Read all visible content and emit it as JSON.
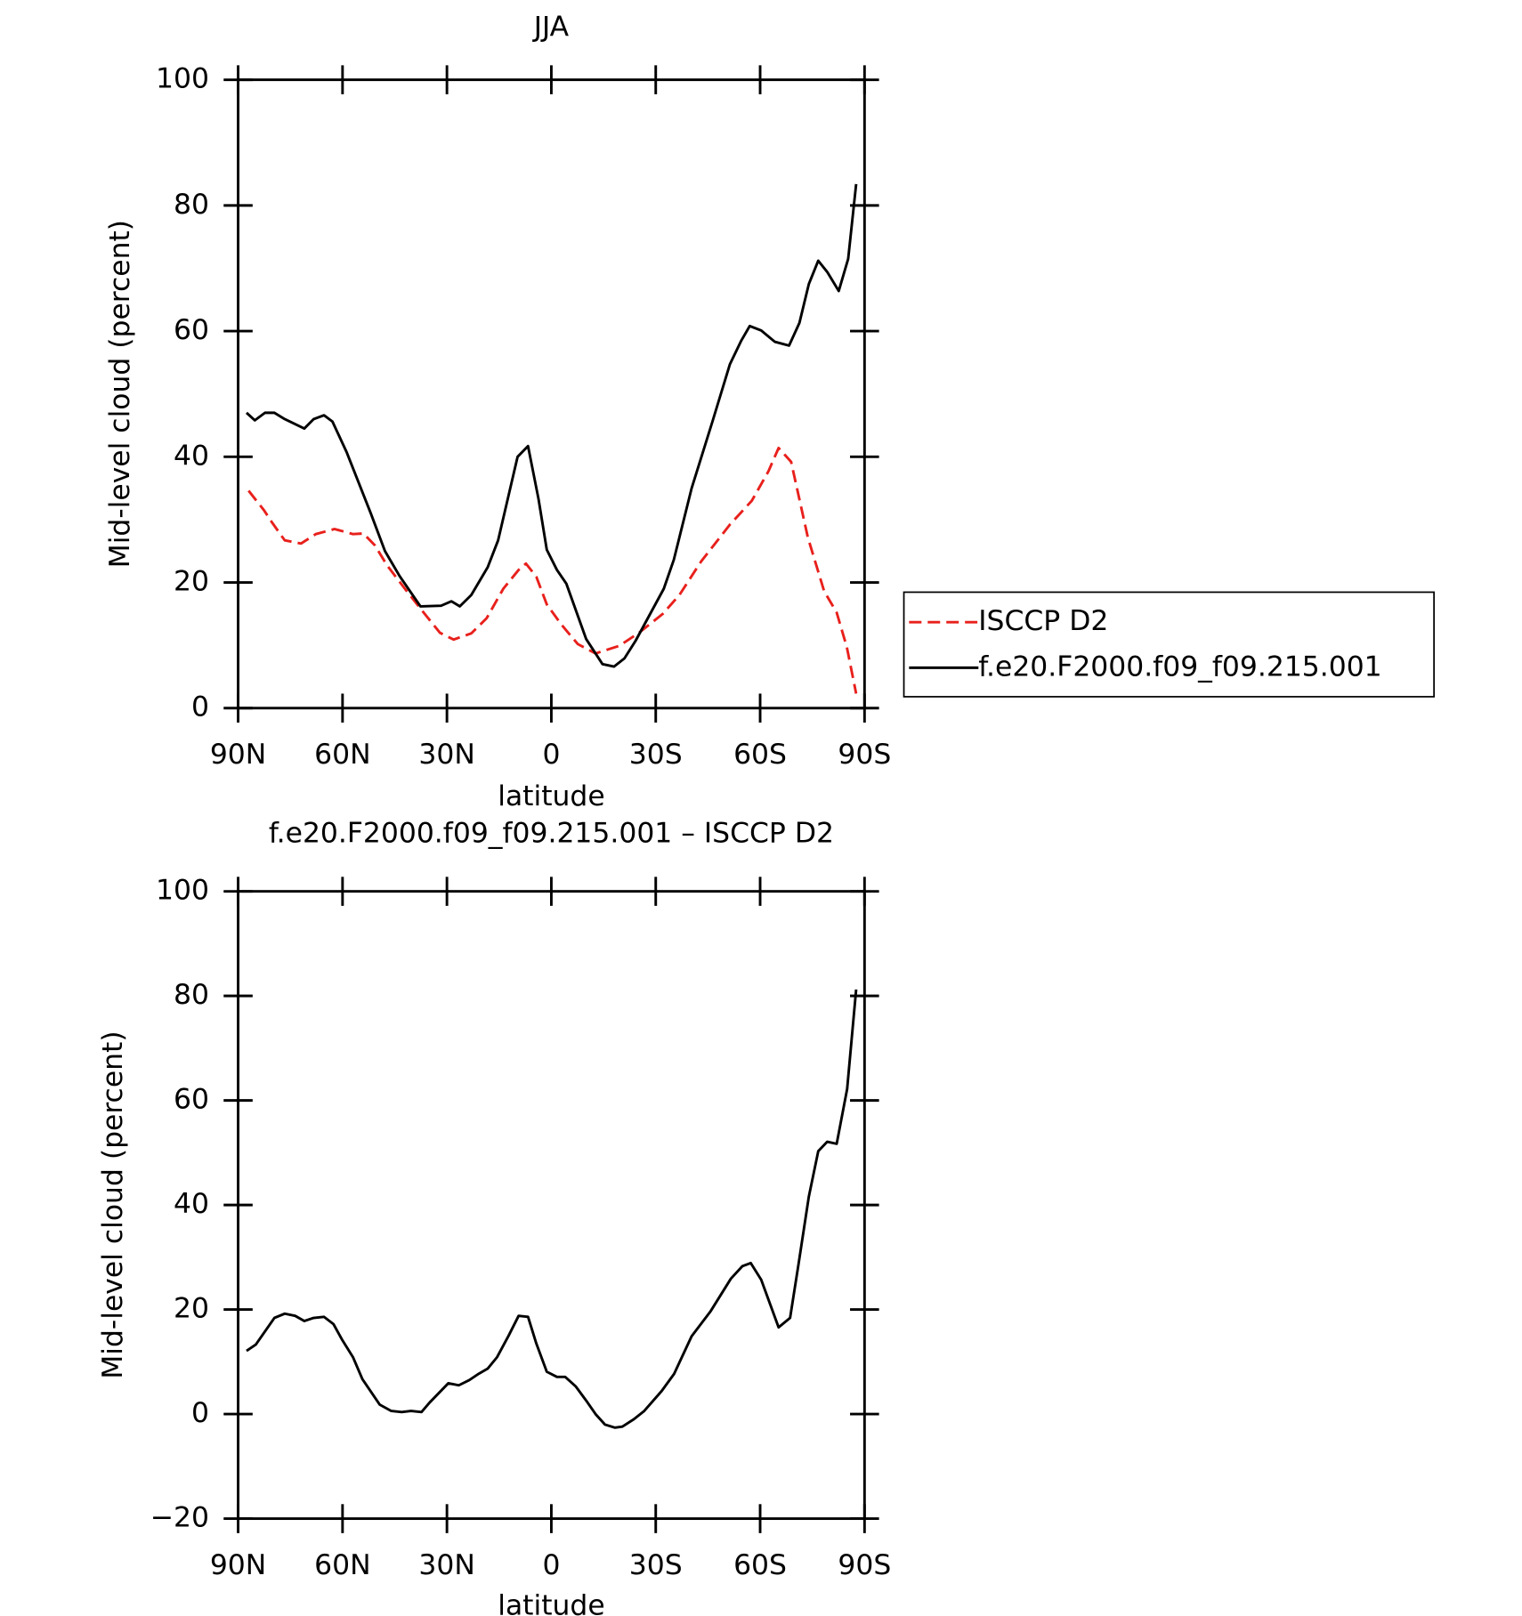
{
  "chart_data": [
    {
      "type": "line",
      "title": "JJA",
      "xlabel": "latitude",
      "ylabel": "Mid-level cloud (percent)",
      "xlim": [
        90,
        -90
      ],
      "xticks": [
        {
          "value": 90,
          "label": "90N"
        },
        {
          "value": 60,
          "label": "60N"
        },
        {
          "value": 30,
          "label": "30N"
        },
        0,
        {
          "value": -30,
          "label": "30S"
        },
        {
          "value": -60,
          "label": "60S"
        },
        {
          "value": -90,
          "label": "90S"
        }
      ],
      "ylim": [
        0,
        100
      ],
      "yticks": [
        0,
        20,
        40,
        60,
        80,
        100
      ],
      "legend": "right",
      "series": [
        {
          "name": "ISCCP D2",
          "color": "#e8201c",
          "linestyle": "dashed",
          "x": [
            87,
            82.6,
            80.2,
            76.6,
            71.9,
            67.7,
            62.3,
            57,
            54,
            50.7,
            47.2,
            41.8,
            36.4,
            32,
            28.1,
            23,
            18.6,
            13.8,
            9.4,
            7.3,
            4.3,
            1.3,
            -2.9,
            -7.6,
            -12.7,
            -19.5,
            -25.2,
            -32,
            -36.8,
            -43.1,
            -51.3,
            -57.6,
            -62.4,
            -65.3,
            -68.9,
            -73.7,
            -78.4,
            -82,
            -84.9,
            -87.6
          ],
          "values": [
            34.6,
            31.5,
            29.5,
            26.7,
            26.2,
            27.7,
            28.5,
            27.7,
            27.8,
            25.9,
            22.7,
            18.8,
            15,
            12,
            10.9,
            11.9,
            14.3,
            19,
            22,
            23,
            20.9,
            16.5,
            13.3,
            10.2,
            8.7,
            9.9,
            12,
            15,
            18,
            23.4,
            29.2,
            33,
            37.7,
            41.4,
            39.2,
            27.2,
            18.6,
            15.2,
            9.7,
            2.3
          ]
        },
        {
          "name": "f.e20.F2000.f09_f09.215.001",
          "color": "#000000",
          "linestyle": "solid",
          "x": [
            87.6,
            85.2,
            82.3,
            79.6,
            76.6,
            71,
            68.3,
            65.3,
            62.9,
            58.8,
            51.9,
            47.8,
            43.6,
            37.6,
            31.7,
            28.7,
            26.3,
            23,
            18.3,
            15.3,
            9.7,
            6.7,
            3.7,
            1.3,
            -1.6,
            -4.3,
            -10,
            -14.7,
            -18,
            -21,
            -24.2,
            -32.3,
            -35.2,
            -40.3,
            -46.3,
            -51.3,
            -54.6,
            -57,
            -60.3,
            -64.2,
            -68.3,
            -71.3,
            -74,
            -76.7,
            -79.3,
            -82.6,
            -85.3,
            -87.6
          ],
          "values": [
            47,
            45.8,
            47,
            47,
            46,
            44.5,
            46,
            46.6,
            45.6,
            40.7,
            31,
            25,
            21,
            16.2,
            16.3,
            17,
            16.2,
            18,
            22.4,
            26.7,
            40,
            41.7,
            33.3,
            25.2,
            22,
            19.8,
            11,
            7,
            6.6,
            7.9,
            10.7,
            19,
            23.6,
            35,
            45.6,
            54.7,
            58.5,
            60.8,
            60.1,
            58.3,
            57.7,
            61.3,
            67.5,
            71.2,
            69.4,
            66.4,
            71.5,
            83.4
          ]
        }
      ]
    },
    {
      "type": "line",
      "title": "f.e20.F2000.f09_f09.215.001 – ISCCP D2",
      "xlabel": "latitude",
      "ylabel": "Mid-level cloud (percent)",
      "xlim": [
        90,
        -90
      ],
      "xticks": [
        {
          "value": 90,
          "label": "90N"
        },
        {
          "value": 60,
          "label": "60N"
        },
        {
          "value": 30,
          "label": "30N"
        },
        0,
        {
          "value": -30,
          "label": "30S"
        },
        {
          "value": -60,
          "label": "60S"
        },
        {
          "value": -90,
          "label": "90S"
        }
      ],
      "ylim": [
        -20,
        100
      ],
      "yticks": [
        {
          "value": -20,
          "label": "−20"
        },
        0,
        20,
        40,
        60,
        80,
        100
      ],
      "series": [
        {
          "color": "#000000",
          "linestyle": "solid",
          "x": [
            87.6,
            84.9,
            79.6,
            76.6,
            73.6,
            71,
            68.3,
            65.3,
            62.6,
            60.2,
            57,
            54.3,
            49.3,
            46,
            43,
            40.3,
            37.3,
            35,
            29.6,
            26.6,
            23.6,
            20.9,
            18.3,
            15.6,
            12.3,
            9.4,
            6.7,
            4.3,
            1.3,
            -1.6,
            -4,
            -7,
            -10,
            -12.7,
            -15.4,
            -18.3,
            -20.4,
            -23.7,
            -26.7,
            -31.7,
            -35.3,
            -40.3,
            -45.7,
            -51.6,
            -54.9,
            -57.3,
            -60.3,
            -65.3,
            -68.6,
            -71,
            -74,
            -76.7,
            -79.3,
            -82,
            -85,
            -87.6
          ],
          "values": [
            12.1,
            13.3,
            18.4,
            19.2,
            18.8,
            17.8,
            18.4,
            18.6,
            17.2,
            14.3,
            10.9,
            6.7,
            1.8,
            0.6,
            0.4,
            0.6,
            0.4,
            2.2,
            5.9,
            5.5,
            6.5,
            7.7,
            8.7,
            10.9,
            15,
            18.8,
            18.6,
            13.5,
            8.1,
            7.1,
            7.1,
            5.3,
            2.6,
            0,
            -2,
            -2.6,
            -2.4,
            -1,
            0.6,
            4.4,
            7.7,
            14.9,
            19.6,
            25.9,
            28.3,
            28.9,
            25.7,
            16.6,
            18.4,
            28.5,
            41.6,
            50.3,
            52.1,
            51.7,
            62.2,
            81.2
          ]
        }
      ]
    }
  ]
}
